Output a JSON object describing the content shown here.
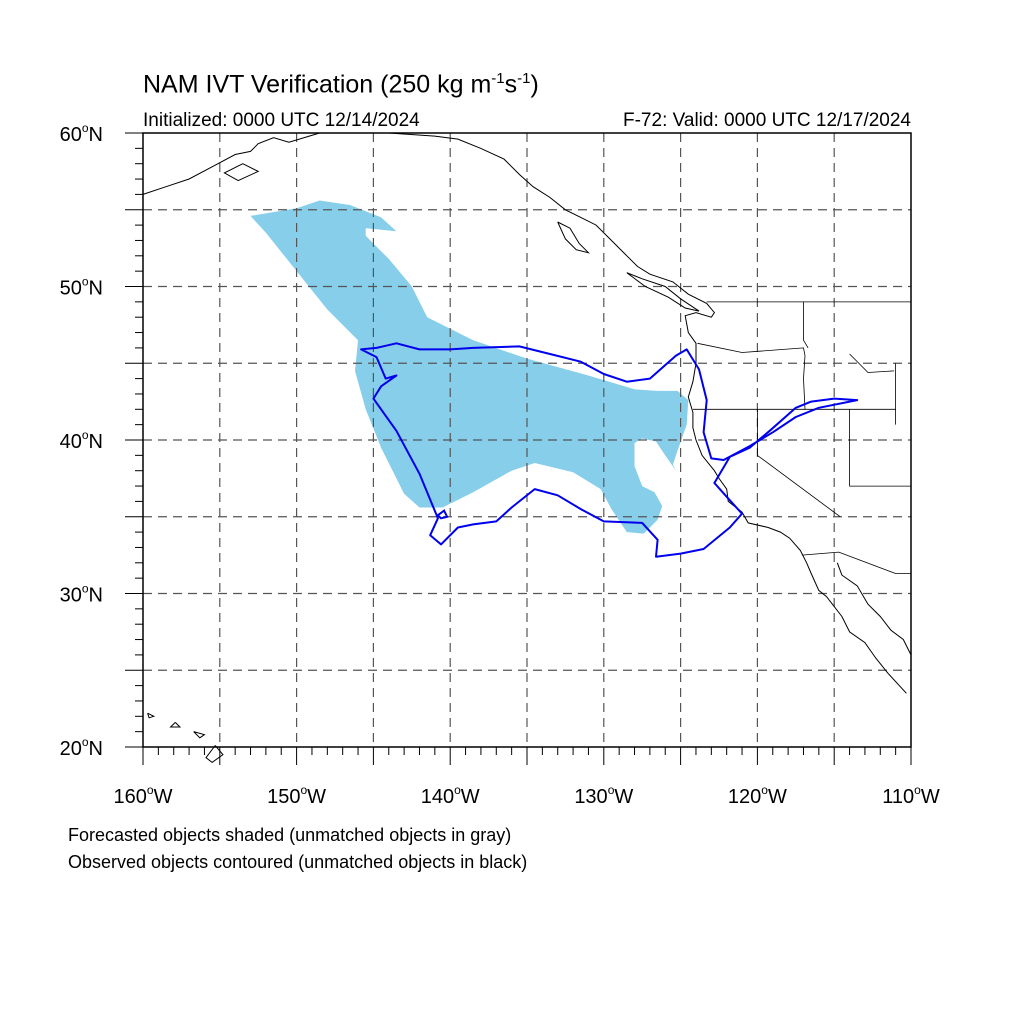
{
  "title": {
    "main": "NAM IVT Verification (250 kg m",
    "sup1": "-1",
    "mid": "s",
    "sup2": "-1",
    "end": ")"
  },
  "init_label": "Initialized: 0000 UTC 12/14/2024",
  "valid_label": "F-72: Valid: 0000 UTC 12/17/2024",
  "legend": [
    "Forecasted objects shaded (unmatched objects in gray)",
    "Observed objects contoured (unmatched objects in black)"
  ],
  "map": {
    "lon_range": [
      -160,
      -110
    ],
    "lat_range": [
      20,
      60
    ],
    "x_ticks": [
      {
        "lon": -160,
        "label": "160",
        "unit": "o",
        "hemi": "W"
      },
      {
        "lon": -150,
        "label": "150",
        "unit": "o",
        "hemi": "W"
      },
      {
        "lon": -140,
        "label": "140",
        "unit": "o",
        "hemi": "W"
      },
      {
        "lon": -130,
        "label": "130",
        "unit": "o",
        "hemi": "W"
      },
      {
        "lon": -120,
        "label": "120",
        "unit": "o",
        "hemi": "W"
      },
      {
        "lon": -110,
        "label": "110",
        "unit": "o",
        "hemi": "W"
      }
    ],
    "y_ticks": [
      {
        "lat": 20,
        "label": "20",
        "unit": "o",
        "hemi": "N"
      },
      {
        "lat": 30,
        "label": "30",
        "unit": "o",
        "hemi": "N"
      },
      {
        "lat": 40,
        "label": "40",
        "unit": "o",
        "hemi": "N"
      },
      {
        "lat": 50,
        "label": "50",
        "unit": "o",
        "hemi": "N"
      },
      {
        "lat": 60,
        "label": "60",
        "unit": "o",
        "hemi": "N"
      }
    ],
    "grid_lons": [
      -155,
      -150,
      -145,
      -140,
      -135,
      -130,
      -125,
      -120,
      -115
    ],
    "grid_lats": [
      25,
      30,
      35,
      40,
      45,
      50,
      55
    ],
    "grid_style": "dashed",
    "colors": {
      "forecast_fill": "#87ceeb",
      "observed_contour": "#0000ee",
      "coastline": "#000000",
      "grid": "#555555"
    },
    "forecast_object": [
      [
        -153.0,
        54.6
      ],
      [
        -150.0,
        55.1
      ],
      [
        -148.5,
        55.6
      ],
      [
        -146.5,
        55.3
      ],
      [
        -144.5,
        54.5
      ],
      [
        -143.5,
        53.6
      ],
      [
        -145.5,
        53.8
      ],
      [
        -145.5,
        53.3
      ],
      [
        -144.0,
        51.8
      ],
      [
        -142.5,
        50.0
      ],
      [
        -141.5,
        48.0
      ],
      [
        -138.5,
        46.5
      ],
      [
        -135.0,
        45.3
      ],
      [
        -131.0,
        44.2
      ],
      [
        -128.0,
        43.3
      ],
      [
        -126.5,
        43.2
      ],
      [
        -125.2,
        43.2
      ],
      [
        -124.5,
        42.6
      ],
      [
        -124.6,
        41.0
      ],
      [
        -125.2,
        39.3
      ],
      [
        -125.5,
        38.4
      ],
      [
        -125.3,
        38.0
      ],
      [
        -126.0,
        39.0
      ],
      [
        -126.6,
        39.9
      ],
      [
        -127.5,
        40.1
      ],
      [
        -128.0,
        39.8
      ],
      [
        -128.0,
        38.3
      ],
      [
        -127.5,
        37.0
      ],
      [
        -126.7,
        36.6
      ],
      [
        -126.2,
        35.7
      ],
      [
        -126.5,
        34.8
      ],
      [
        -127.4,
        33.9
      ],
      [
        -128.5,
        34.0
      ],
      [
        -129.5,
        35.5
      ],
      [
        -130.2,
        36.8
      ],
      [
        -132.0,
        37.9
      ],
      [
        -134.5,
        38.5
      ],
      [
        -136.0,
        38.0
      ],
      [
        -138.5,
        36.6
      ],
      [
        -140.5,
        35.6
      ],
      [
        -142.0,
        35.6
      ],
      [
        -143.0,
        36.5
      ],
      [
        -144.5,
        39.5
      ],
      [
        -145.5,
        42.0
      ],
      [
        -146.2,
        44.5
      ],
      [
        -146.0,
        46.5
      ],
      [
        -148.0,
        48.5
      ],
      [
        -150.0,
        51.0
      ],
      [
        -152.0,
        53.5
      ]
    ],
    "observed_contour": [
      [
        -145.8,
        45.9
      ],
      [
        -144.8,
        45.4
      ],
      [
        -144.2,
        44.0
      ],
      [
        -143.5,
        44.2
      ],
      [
        -144.5,
        43.5
      ],
      [
        -145.0,
        42.7
      ],
      [
        -143.5,
        40.6
      ],
      [
        -142.0,
        37.8
      ],
      [
        -140.8,
        34.9
      ],
      [
        -141.3,
        33.8
      ],
      [
        -140.6,
        33.2
      ],
      [
        -139.5,
        34.3
      ],
      [
        -138.5,
        34.5
      ],
      [
        -137.0,
        34.7
      ],
      [
        -136.0,
        35.6
      ],
      [
        -134.5,
        36.8
      ],
      [
        -133.0,
        36.4
      ],
      [
        -131.5,
        35.5
      ],
      [
        -130.0,
        34.7
      ],
      [
        -127.5,
        34.6
      ],
      [
        -126.5,
        33.5
      ],
      [
        -126.6,
        32.4
      ],
      [
        -125.0,
        32.6
      ],
      [
        -123.5,
        32.9
      ],
      [
        -121.8,
        34.3
      ],
      [
        -121.0,
        35.2
      ],
      [
        -122.0,
        36.3
      ],
      [
        -122.8,
        37.2
      ],
      [
        -121.8,
        38.9
      ],
      [
        -120.5,
        39.5
      ],
      [
        -119.2,
        40.6
      ],
      [
        -117.5,
        42.1
      ],
      [
        -116.5,
        42.5
      ],
      [
        -115.0,
        42.7
      ],
      [
        -113.5,
        42.6
      ],
      [
        -116.0,
        42.1
      ],
      [
        -117.5,
        41.5
      ],
      [
        -119.0,
        40.5
      ],
      [
        -120.5,
        39.6
      ],
      [
        -122.2,
        38.7
      ],
      [
        -123.0,
        38.8
      ],
      [
        -123.5,
        40.5
      ],
      [
        -123.3,
        42.6
      ],
      [
        -123.8,
        44.6
      ],
      [
        -124.6,
        45.9
      ],
      [
        -125.3,
        45.5
      ],
      [
        -127.0,
        44.0
      ],
      [
        -128.5,
        43.8
      ],
      [
        -130.0,
        44.3
      ],
      [
        -131.5,
        45.1
      ],
      [
        -133.5,
        45.6
      ],
      [
        -135.5,
        46.1
      ],
      [
        -138.5,
        46.0
      ],
      [
        -140.0,
        45.9
      ],
      [
        -142.0,
        45.9
      ],
      [
        -143.5,
        46.3
      ],
      [
        -144.8,
        46.0
      ]
    ],
    "observed_islet": [
      [
        -140.8,
        35.1
      ],
      [
        -140.4,
        35.4
      ],
      [
        -140.2,
        35.0
      ],
      [
        -140.6,
        34.9
      ]
    ],
    "coastlines": [
      [
        [
          -160,
          56.0
        ],
        [
          -158.5,
          56.5
        ],
        [
          -157.0,
          57.0
        ],
        [
          -155.5,
          57.8
        ],
        [
          -154.0,
          58.6
        ],
        [
          -153.0,
          58.8
        ],
        [
          -152.5,
          59.3
        ],
        [
          -151.5,
          59.7
        ],
        [
          -150.5,
          59.4
        ],
        [
          -149.5,
          59.7
        ],
        [
          -148.5,
          60.0
        ]
      ],
      [
        [
          -153.5,
          58.0
        ],
        [
          -152.5,
          57.5
        ],
        [
          -153.8,
          56.9
        ],
        [
          -154.7,
          57.4
        ],
        [
          -153.5,
          58.0
        ]
      ],
      [
        [
          -144.0,
          60.0
        ],
        [
          -141.0,
          59.8
        ],
        [
          -139.5,
          59.6
        ],
        [
          -138.0,
          59.0
        ],
        [
          -136.5,
          58.3
        ],
        [
          -135.5,
          57.3
        ],
        [
          -134.6,
          56.5
        ],
        [
          -133.5,
          55.8
        ],
        [
          -132.5,
          55.0
        ],
        [
          -131.5,
          54.5
        ],
        [
          -130.5,
          54.0
        ],
        [
          -129.5,
          53.0
        ],
        [
          -128.5,
          52.0
        ],
        [
          -127.8,
          51.3
        ],
        [
          -127.0,
          50.8
        ],
        [
          -125.5,
          50.3
        ],
        [
          -124.5,
          49.5
        ],
        [
          -123.3,
          48.9
        ],
        [
          -122.8,
          48.3
        ],
        [
          -123.0,
          48.0
        ],
        [
          -124.0,
          48.3
        ],
        [
          -124.7,
          48.1
        ],
        [
          -124.5,
          47.0
        ],
        [
          -124.0,
          46.3
        ],
        [
          -124.0,
          45.0
        ],
        [
          -124.2,
          43.8
        ],
        [
          -124.5,
          42.8
        ],
        [
          -124.2,
          41.8
        ],
        [
          -124.2,
          40.8
        ],
        [
          -124.0,
          40.0
        ],
        [
          -123.6,
          39.0
        ],
        [
          -122.8,
          38.0
        ],
        [
          -122.5,
          37.5
        ],
        [
          -122.0,
          36.8
        ],
        [
          -121.9,
          36.0
        ],
        [
          -121.0,
          35.3
        ],
        [
          -120.6,
          34.6
        ],
        [
          -119.3,
          34.3
        ],
        [
          -118.5,
          34.0
        ],
        [
          -117.9,
          33.6
        ],
        [
          -117.2,
          32.8
        ],
        [
          -116.8,
          32.0
        ],
        [
          -116.5,
          31.3
        ],
        [
          -116.0,
          30.2
        ],
        [
          -115.5,
          29.8
        ],
        [
          -114.5,
          28.5
        ],
        [
          -114.0,
          27.5
        ],
        [
          -113.0,
          26.8
        ],
        [
          -112.3,
          25.8
        ],
        [
          -111.5,
          24.8
        ],
        [
          -110.3,
          23.5
        ]
      ],
      [
        [
          -114.8,
          32.0
        ],
        [
          -114.5,
          31.2
        ],
        [
          -113.5,
          30.5
        ],
        [
          -112.8,
          29.3
        ],
        [
          -112.0,
          28.5
        ],
        [
          -111.3,
          27.6
        ],
        [
          -110.5,
          27.0
        ],
        [
          -110.0,
          26.0
        ]
      ],
      [
        [
          -133.0,
          54.2
        ],
        [
          -132.2,
          53.8
        ],
        [
          -131.6,
          52.8
        ],
        [
          -131.0,
          52.2
        ],
        [
          -131.8,
          52.4
        ],
        [
          -132.5,
          53.1
        ],
        [
          -133.0,
          54.2
        ]
      ],
      [
        [
          -128.5,
          50.9
        ],
        [
          -127.5,
          50.5
        ],
        [
          -126.0,
          50.0
        ],
        [
          -125.0,
          49.2
        ],
        [
          -123.8,
          48.4
        ],
        [
          -124.7,
          48.6
        ],
        [
          -125.8,
          49.3
        ],
        [
          -127.3,
          50.0
        ],
        [
          -128.5,
          50.9
        ]
      ],
      [
        [
          -155.3,
          20.1
        ],
        [
          -154.8,
          19.5
        ],
        [
          -155.5,
          19.0
        ],
        [
          -155.9,
          19.3
        ],
        [
          -155.3,
          20.1
        ]
      ],
      [
        [
          -156.7,
          21.0
        ],
        [
          -156.0,
          20.8
        ],
        [
          -156.3,
          20.6
        ],
        [
          -156.7,
          21.0
        ]
      ],
      [
        [
          -157.9,
          21.6
        ],
        [
          -157.6,
          21.3
        ],
        [
          -158.2,
          21.3
        ],
        [
          -157.9,
          21.6
        ]
      ],
      [
        [
          -159.7,
          22.2
        ],
        [
          -159.3,
          22.0
        ],
        [
          -159.6,
          21.9
        ],
        [
          -159.7,
          22.2
        ]
      ]
    ],
    "borders": [
      [
        [
          -123.3,
          49.0
        ],
        [
          -115.0,
          49.0
        ],
        [
          -110.0,
          49.0
        ]
      ],
      [
        [
          -123.9,
          46.3
        ],
        [
          -121.0,
          45.7
        ],
        [
          -117.0,
          46.0
        ],
        [
          -116.9,
          45.5
        ],
        [
          -117.0,
          44.0
        ],
        [
          -116.9,
          42.0
        ]
      ],
      [
        [
          -124.2,
          42.0
        ],
        [
          -120.0,
          42.0
        ],
        [
          -117.0,
          42.0
        ],
        [
          -111.0,
          42.0
        ]
      ],
      [
        [
          -120.0,
          42.0
        ],
        [
          -120.0,
          39.0
        ],
        [
          -114.6,
          35.0
        ]
      ],
      [
        [
          -117.1,
          32.5
        ],
        [
          -114.7,
          32.7
        ],
        [
          -111.0,
          31.3
        ],
        [
          -110.0,
          31.3
        ]
      ],
      [
        [
          -117.0,
          49.0
        ],
        [
          -117.0,
          46.5
        ],
        [
          -116.7,
          46.0
        ]
      ],
      [
        [
          -114.0,
          45.6
        ],
        [
          -112.8,
          44.4
        ],
        [
          -111.1,
          44.5
        ]
      ],
      [
        [
          -114.0,
          42.0
        ],
        [
          -114.0,
          37.0
        ],
        [
          -110.0,
          37.0
        ]
      ],
      [
        [
          -111.0,
          45.0
        ],
        [
          -111.0,
          41.0
        ]
      ]
    ]
  }
}
